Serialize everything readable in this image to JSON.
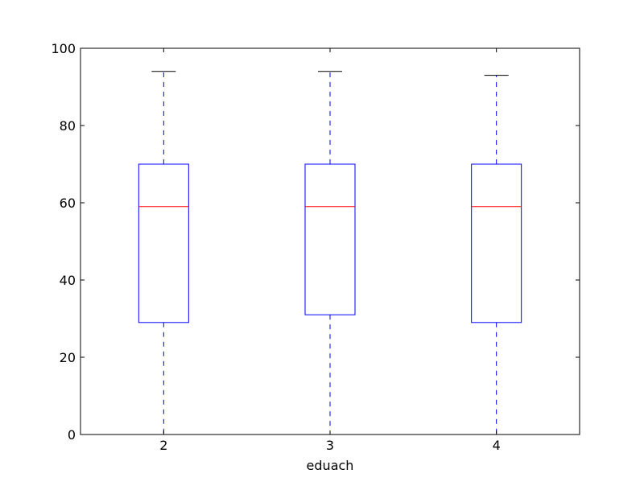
{
  "chart_data": {
    "type": "box",
    "categories": [
      "2",
      "3",
      "4"
    ],
    "boxes": [
      {
        "category": "2",
        "whisker_low": 0,
        "q1": 29,
        "median": 59,
        "q3": 70,
        "whisker_high": 94
      },
      {
        "category": "3",
        "whisker_low": 0,
        "q1": 31,
        "median": 59,
        "q3": 70,
        "whisker_high": 94
      },
      {
        "category": "4",
        "whisker_low": 0,
        "q1": 29,
        "median": 59,
        "q3": 70,
        "whisker_high": 93
      }
    ],
    "title": "",
    "xlabel": "eduach",
    "ylabel": "",
    "ylim": [
      0,
      100
    ],
    "yticks": [
      0,
      20,
      40,
      60,
      80,
      100
    ],
    "ytick_labels": [
      "0",
      "20",
      "40",
      "60",
      "80",
      "100"
    ],
    "grid": false,
    "colors": {
      "box": "#0000ff",
      "whisker": "#0000ff",
      "median": "#ff0000",
      "cap": "#000000",
      "axes": "#000000",
      "background": "#ffffff"
    }
  }
}
